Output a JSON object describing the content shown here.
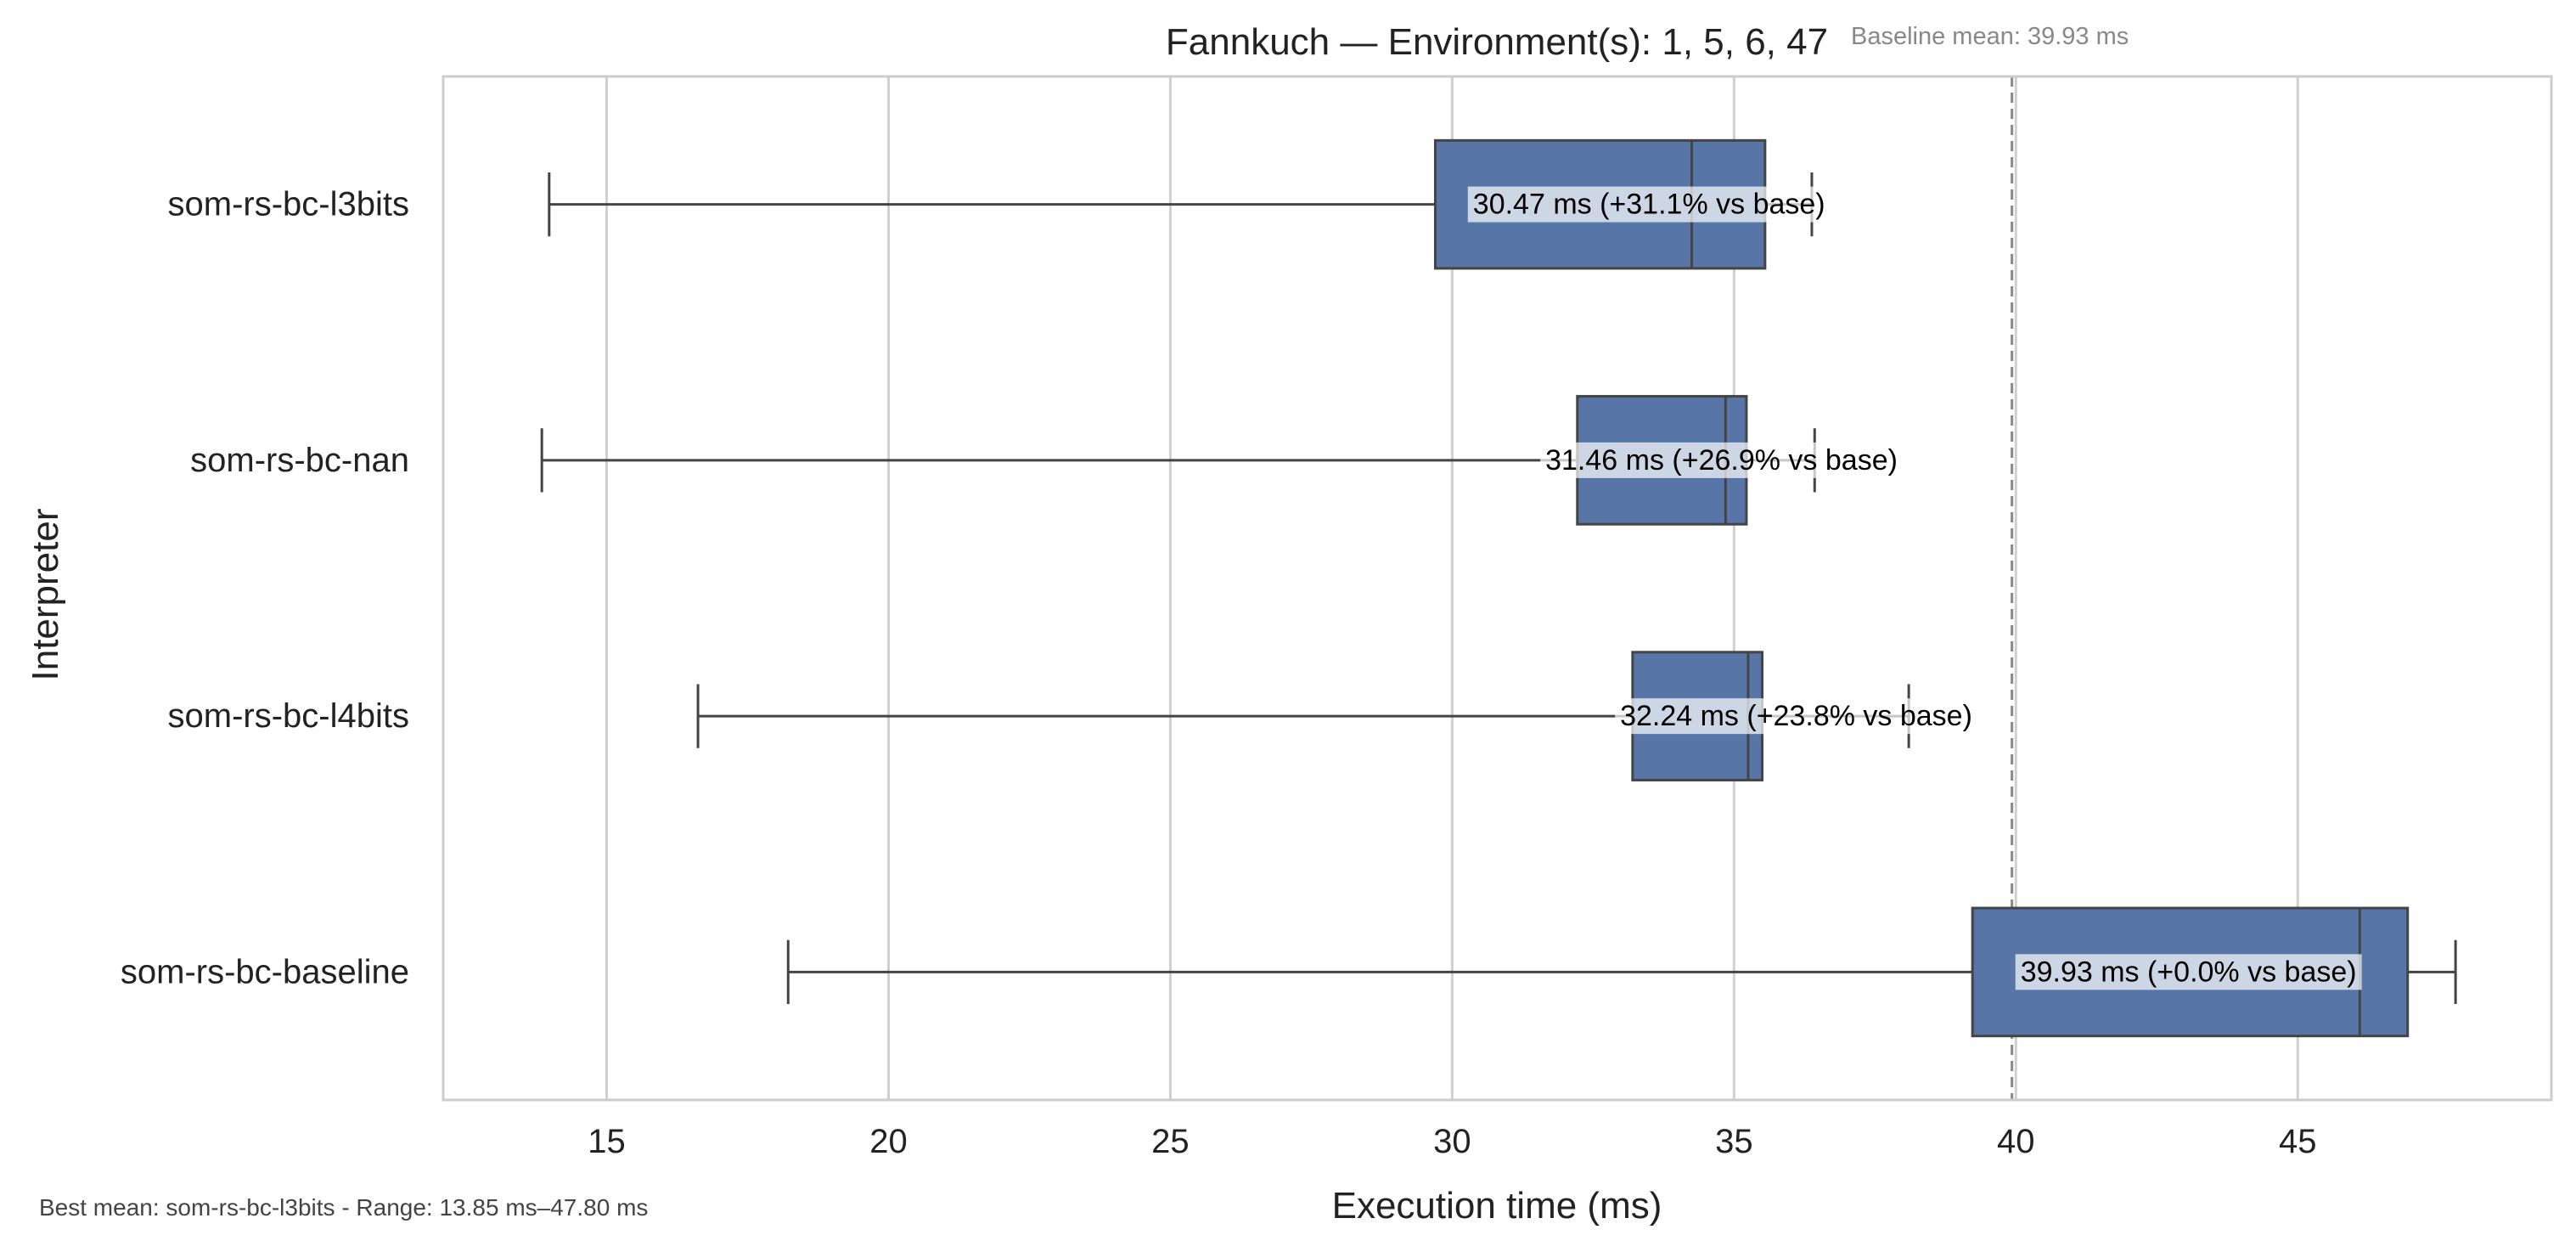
{
  "chart_data": {
    "type": "box",
    "orientation": "horizontal",
    "title": "Fannkuch — Environment(s): 1, 5, 6, 47",
    "xlabel": "Execution time (ms)",
    "ylabel": "Interpreter",
    "xlim": [
      12.1,
      49.5
    ],
    "xticks": [
      15,
      20,
      25,
      30,
      35,
      40,
      45
    ],
    "grid": true,
    "box_color": "#5875a8",
    "baseline": {
      "value": 39.93,
      "label": "Baseline mean: 39.93 ms",
      "color": "#888888"
    },
    "series": [
      {
        "name": "som-rs-bc-l3bits",
        "whisker_low": 13.98,
        "q1": 29.7,
        "median": 34.25,
        "q3": 35.55,
        "whisker_high": 36.38,
        "annotation": "30.47 ms  (+31.1% vs base)"
      },
      {
        "name": "som-rs-bc-nan",
        "whisker_low": 13.85,
        "q1": 32.22,
        "median": 34.85,
        "q3": 35.22,
        "whisker_high": 36.43,
        "annotation": "31.46 ms  (+26.9% vs base)"
      },
      {
        "name": "som-rs-bc-l4bits",
        "whisker_low": 16.62,
        "q1": 33.2,
        "median": 35.25,
        "q3": 35.5,
        "whisker_high": 38.1,
        "annotation": "32.24 ms  (+23.8% vs base)"
      },
      {
        "name": "som-rs-bc-baseline",
        "whisker_low": 18.22,
        "q1": 39.23,
        "median": 46.1,
        "q3": 46.95,
        "whisker_high": 47.8,
        "annotation": "39.93 ms  (+0.0% vs base)"
      }
    ],
    "footer": "Best mean: som-rs-bc-l3bits - Range: 13.85 ms–47.80 ms"
  }
}
